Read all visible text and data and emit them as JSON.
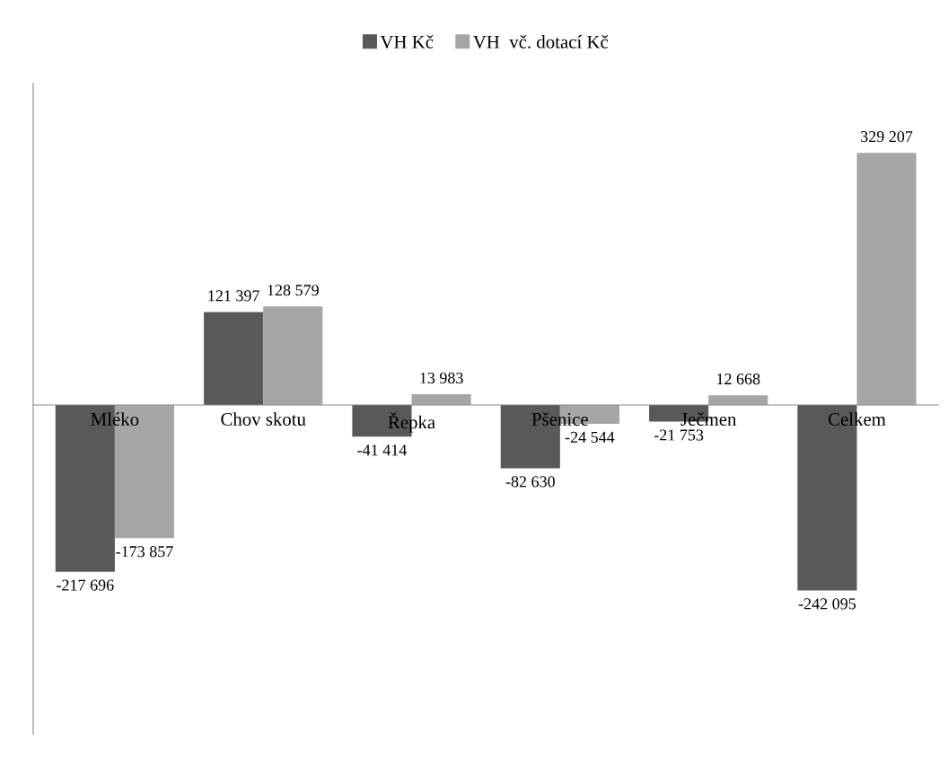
{
  "chart_data": {
    "type": "bar",
    "categories": [
      "Mléko",
      "Chov skotu",
      "Řepka",
      "Pšenice",
      "Ječmen",
      "Celkem"
    ],
    "series": [
      {
        "name": "VH Kč",
        "color": "#595959",
        "values": [
          -217696,
          121397,
          -41414,
          -82630,
          -21753,
          -242095
        ],
        "value_labels": [
          "-217 696",
          "121 397",
          "-41 414",
          "-82 630",
          "-21 753",
          "-242 095"
        ]
      },
      {
        "name": "VH  vč. dotací Kč",
        "color": "#a6a6a6",
        "values": [
          -173857,
          128579,
          13983,
          -24544,
          12668,
          329207
        ],
        "value_labels": [
          "-173 857",
          "128 579",
          "13 983",
          "-24 544",
          "12 668",
          "329 207"
        ]
      }
    ],
    "legend": "top",
    "grid": false,
    "tick_labels": "x"
  }
}
